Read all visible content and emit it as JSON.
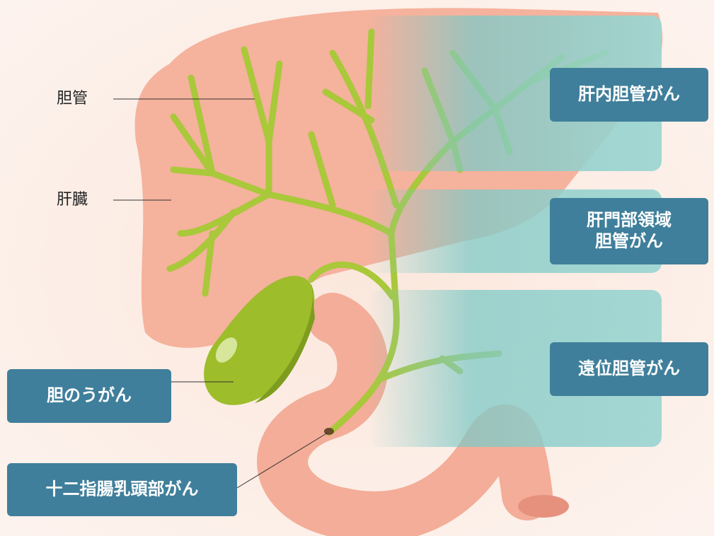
{
  "labels": [
    {
      "text": "胆管"
    },
    {
      "text": "肝臓"
    }
  ],
  "callouts": [
    {
      "lines": [
        "肝内胆管がん"
      ]
    },
    {
      "lines": [
        "肝門部領域",
        "胆管がん"
      ]
    },
    {
      "lines": [
        "遠位胆管がん"
      ]
    },
    {
      "lines": [
        "胆のうがん"
      ]
    },
    {
      "lines": [
        "十二指腸乳頭部がん"
      ]
    }
  ]
}
